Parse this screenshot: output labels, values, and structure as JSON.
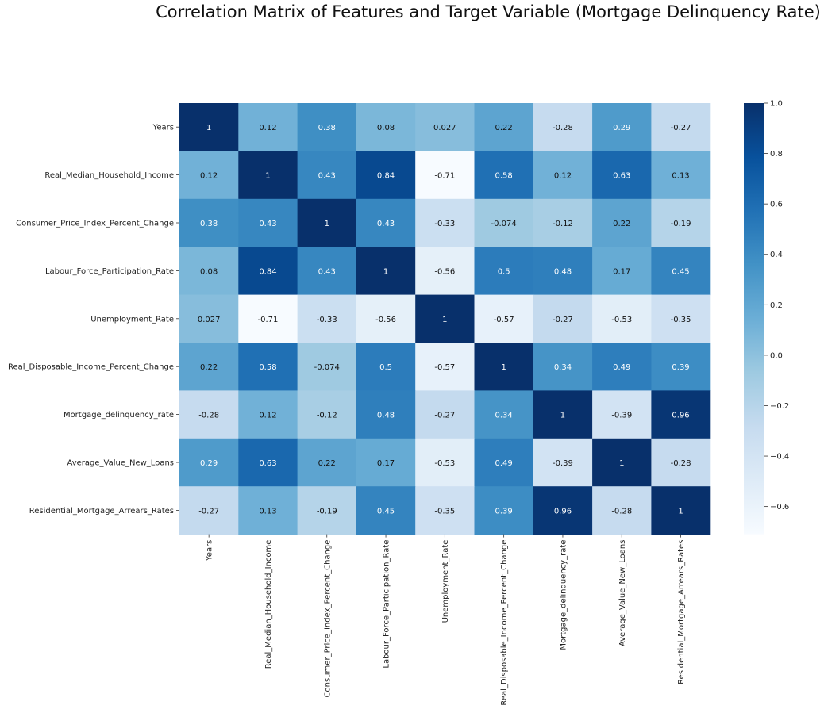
{
  "chart_data": {
    "type": "heatmap",
    "title": "Correlation Matrix of Features and Target Variable (Mortgage Delinquency Rate)",
    "xlabel": "",
    "ylabel": "",
    "labels": [
      "Years",
      "Real_Median_Household_Income",
      "Consumer_Price_Index_Percent_Change",
      "Labour_Force_Participation_Rate",
      "Unemployment_Rate",
      "Real_Disposable_Income_Percent_Change ",
      "Mortgage_delinquency_rate",
      "Average_Value_New_Loans",
      "Residential_Mortgage_Arrears_Rates"
    ],
    "display": [
      [
        "1",
        "0.12",
        "0.38",
        "0.08",
        "0.027",
        "0.22",
        "-0.28",
        "0.29",
        "-0.27"
      ],
      [
        "0.12",
        "1",
        "0.43",
        "0.84",
        "-0.71",
        "0.58",
        "0.12",
        "0.63",
        "0.13"
      ],
      [
        "0.38",
        "0.43",
        "1",
        "0.43",
        "-0.33",
        "-0.074",
        "-0.12",
        "0.22",
        "-0.19"
      ],
      [
        "0.08",
        "0.84",
        "0.43",
        "1",
        "-0.56",
        "0.5",
        "0.48",
        "0.17",
        "0.45"
      ],
      [
        "0.027",
        "-0.71",
        "-0.33",
        "-0.56",
        "1",
        "-0.57",
        "-0.27",
        "-0.53",
        "-0.35"
      ],
      [
        "0.22",
        "0.58",
        "-0.074",
        "0.5",
        "-0.57",
        "1",
        "0.34",
        "0.49",
        "0.39"
      ],
      [
        "-0.28",
        "0.12",
        "-0.12",
        "0.48",
        "-0.27",
        "0.34",
        "1",
        "-0.39",
        "0.96"
      ],
      [
        "0.29",
        "0.63",
        "0.22",
        "0.17",
        "-0.53",
        "0.49",
        "-0.39",
        "1",
        "-0.28"
      ],
      [
        "-0.27",
        "0.13",
        "-0.19",
        "0.45",
        "-0.35",
        "0.39",
        "0.96",
        "-0.28",
        "1"
      ]
    ],
    "colormap": "Blues",
    "vmin": -0.71,
    "vmax": 1.0,
    "colorbar_ticks": [
      "1.0",
      "0.8",
      "0.6",
      "0.4",
      "0.2",
      "0.0",
      "−0.2",
      "−0.4",
      "−0.6"
    ],
    "legend": "right"
  }
}
